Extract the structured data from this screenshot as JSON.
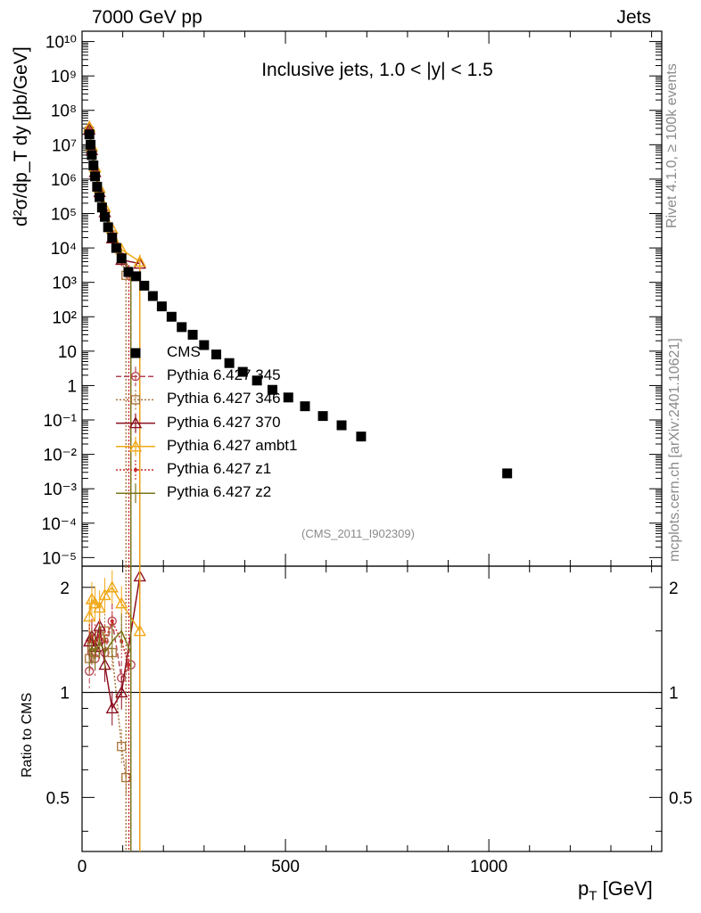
{
  "header": {
    "left": "7000 GeV pp",
    "right": "Jets"
  },
  "side_labels": {
    "rivet": "Rivet 4.1.0, ≥ 100k events",
    "mcplots": "mcplots.cern.ch [arXiv:2401.10621]"
  },
  "chart_data": {
    "type": "scatter",
    "title": "Inclusive jets, 1.0 < |y| < 1.5",
    "annotation": "(CMS_2011_I902309)",
    "xlabel_main": "p",
    "xlabel_sub": "T",
    "xlabel_unit": "[GeV]",
    "ylabel_main": "d²σ/dp_T dy [pb/GeV]",
    "ylabel_ratio": "Ratio to CMS",
    "xlim": [
      0,
      1425
    ],
    "ylim_log": [
      -5.25,
      10.3
    ],
    "ratio_ylim": [
      0.35,
      2.3
    ],
    "x_ticks": [
      "0",
      "500",
      "1000"
    ],
    "x_tick_values": [
      0,
      500,
      1000
    ],
    "y_ticks": [
      "10⁻⁵",
      "10⁻⁴",
      "10⁻³",
      "10⁻²",
      "10⁻¹",
      "1",
      "10",
      "10²",
      "10³",
      "10⁴",
      "10⁵",
      "10⁶",
      "10⁷",
      "10⁸",
      "10⁹",
      "10¹⁰"
    ],
    "ratio_ticks": [
      "0.5",
      "1",
      "2"
    ],
    "ratio_tick_values": [
      0.5,
      1,
      2
    ],
    "legend": [
      {
        "name": "CMS",
        "color": "#000000",
        "marker": "square",
        "style": "none"
      },
      {
        "name": "Pythia 6.427 345",
        "color": "#b5424f",
        "marker": "circle",
        "style": "dashed"
      },
      {
        "name": "Pythia 6.427 346",
        "color": "#a8743a",
        "marker": "square-open",
        "style": "dotted"
      },
      {
        "name": "Pythia 6.427 370",
        "color": "#8c1020",
        "marker": "triangle",
        "style": "solid"
      },
      {
        "name": "Pythia 6.427 ambt1",
        "color": "#f0a818",
        "marker": "triangle",
        "style": "solid"
      },
      {
        "name": "Pythia 6.427 z1",
        "color": "#c82828",
        "marker": "dot",
        "style": "dotted"
      },
      {
        "name": "Pythia 6.427 z2",
        "color": "#7a7418",
        "marker": "none",
        "style": "solid"
      }
    ],
    "cms_data": {
      "x": [
        18,
        21,
        24,
        28,
        32,
        37,
        43,
        49,
        56,
        64,
        74,
        84,
        97,
        114,
        133,
        153,
        174,
        196,
        220,
        245,
        272,
        300,
        330,
        362,
        395,
        430,
        468,
        507,
        548,
        592,
        638,
        686,
        1045
      ],
      "y": [
        20000000.0,
        10000000.0,
        5000000.0,
        2500000.0,
        1200000.0,
        600000.0,
        300000.0,
        150000.0,
        80000.0,
        40000.0,
        20000.0,
        10000.0,
        5000.0,
        2000.0,
        1500.0,
        800.0,
        400.0,
        200.0,
        100.0,
        50.0,
        30.0,
        15.0,
        8.0,
        4.5,
        2.5,
        1.4,
        0.75,
        0.45,
        0.25,
        0.13,
        0.07,
        0.033,
        0.0028
      ]
    },
    "series": [
      {
        "name": "Pythia 6.427 345",
        "x": [
          18,
          24,
          32,
          43,
          56,
          74,
          97,
          120
        ],
        "y": [
          26000000.0,
          6500000.0,
          1500000.0,
          380000.0,
          95000.0,
          22000.0,
          5500.0,
          1500.0
        ],
        "ratio": [
          1.15,
          1.3,
          1.25,
          1.4,
          1.3,
          1.6,
          1.1,
          1.2
        ]
      },
      {
        "name": "Pythia 6.427 346",
        "x": [
          18,
          24,
          32,
          43,
          56,
          74,
          97,
          108
        ],
        "y": [
          25000000.0,
          6300000.0,
          1500000.0,
          390000.0,
          100000.0,
          24000.0,
          4500.0,
          1600.0
        ],
        "ratio": [
          1.25,
          1.35,
          1.3,
          1.45,
          1.5,
          1.3,
          0.7,
          0.57
        ]
      },
      {
        "name": "Pythia 6.427 370",
        "x": [
          18,
          24,
          32,
          43,
          56,
          74,
          97,
          142
        ],
        "y": [
          28000000.0,
          7000000.0,
          1600000.0,
          420000.0,
          110000.0,
          19000.0,
          4500.0,
          3500.0
        ],
        "ratio": [
          1.4,
          1.45,
          1.35,
          1.55,
          1.2,
          0.9,
          1.0,
          2.15
        ]
      },
      {
        "name": "Pythia 6.427 ambt1",
        "x": [
          18,
          24,
          32,
          43,
          56,
          74,
          97,
          142
        ],
        "y": [
          33000000.0,
          9000000.0,
          2200000.0,
          560000.0,
          150000.0,
          36000.0,
          9000.0,
          4000.0
        ],
        "ratio": [
          1.65,
          1.85,
          1.8,
          1.75,
          1.9,
          2.0,
          1.8,
          1.5
        ]
      },
      {
        "name": "Pythia 6.427 z1",
        "x": [
          18,
          24,
          32,
          43,
          56,
          74,
          97,
          115
        ],
        "y": [
          28000000.0,
          7200000.0,
          1700000.0,
          430000.0,
          110000.0,
          28000.0,
          6500.0,
          2000.0
        ],
        "ratio": [
          1.4,
          1.45,
          1.4,
          1.45,
          1.4,
          1.6,
          1.4,
          1.2
        ]
      },
      {
        "name": "Pythia 6.427 z2",
        "x": [
          18,
          24,
          32,
          43,
          56,
          74,
          97,
          120
        ],
        "y": [
          26000000.0,
          6700000.0,
          1600000.0,
          400000.0,
          100000.0,
          25000.0,
          6000.0,
          1800.0
        ],
        "ratio": [
          1.3,
          1.35,
          1.3,
          1.4,
          1.3,
          1.4,
          1.5,
          1.3
        ]
      }
    ]
  }
}
